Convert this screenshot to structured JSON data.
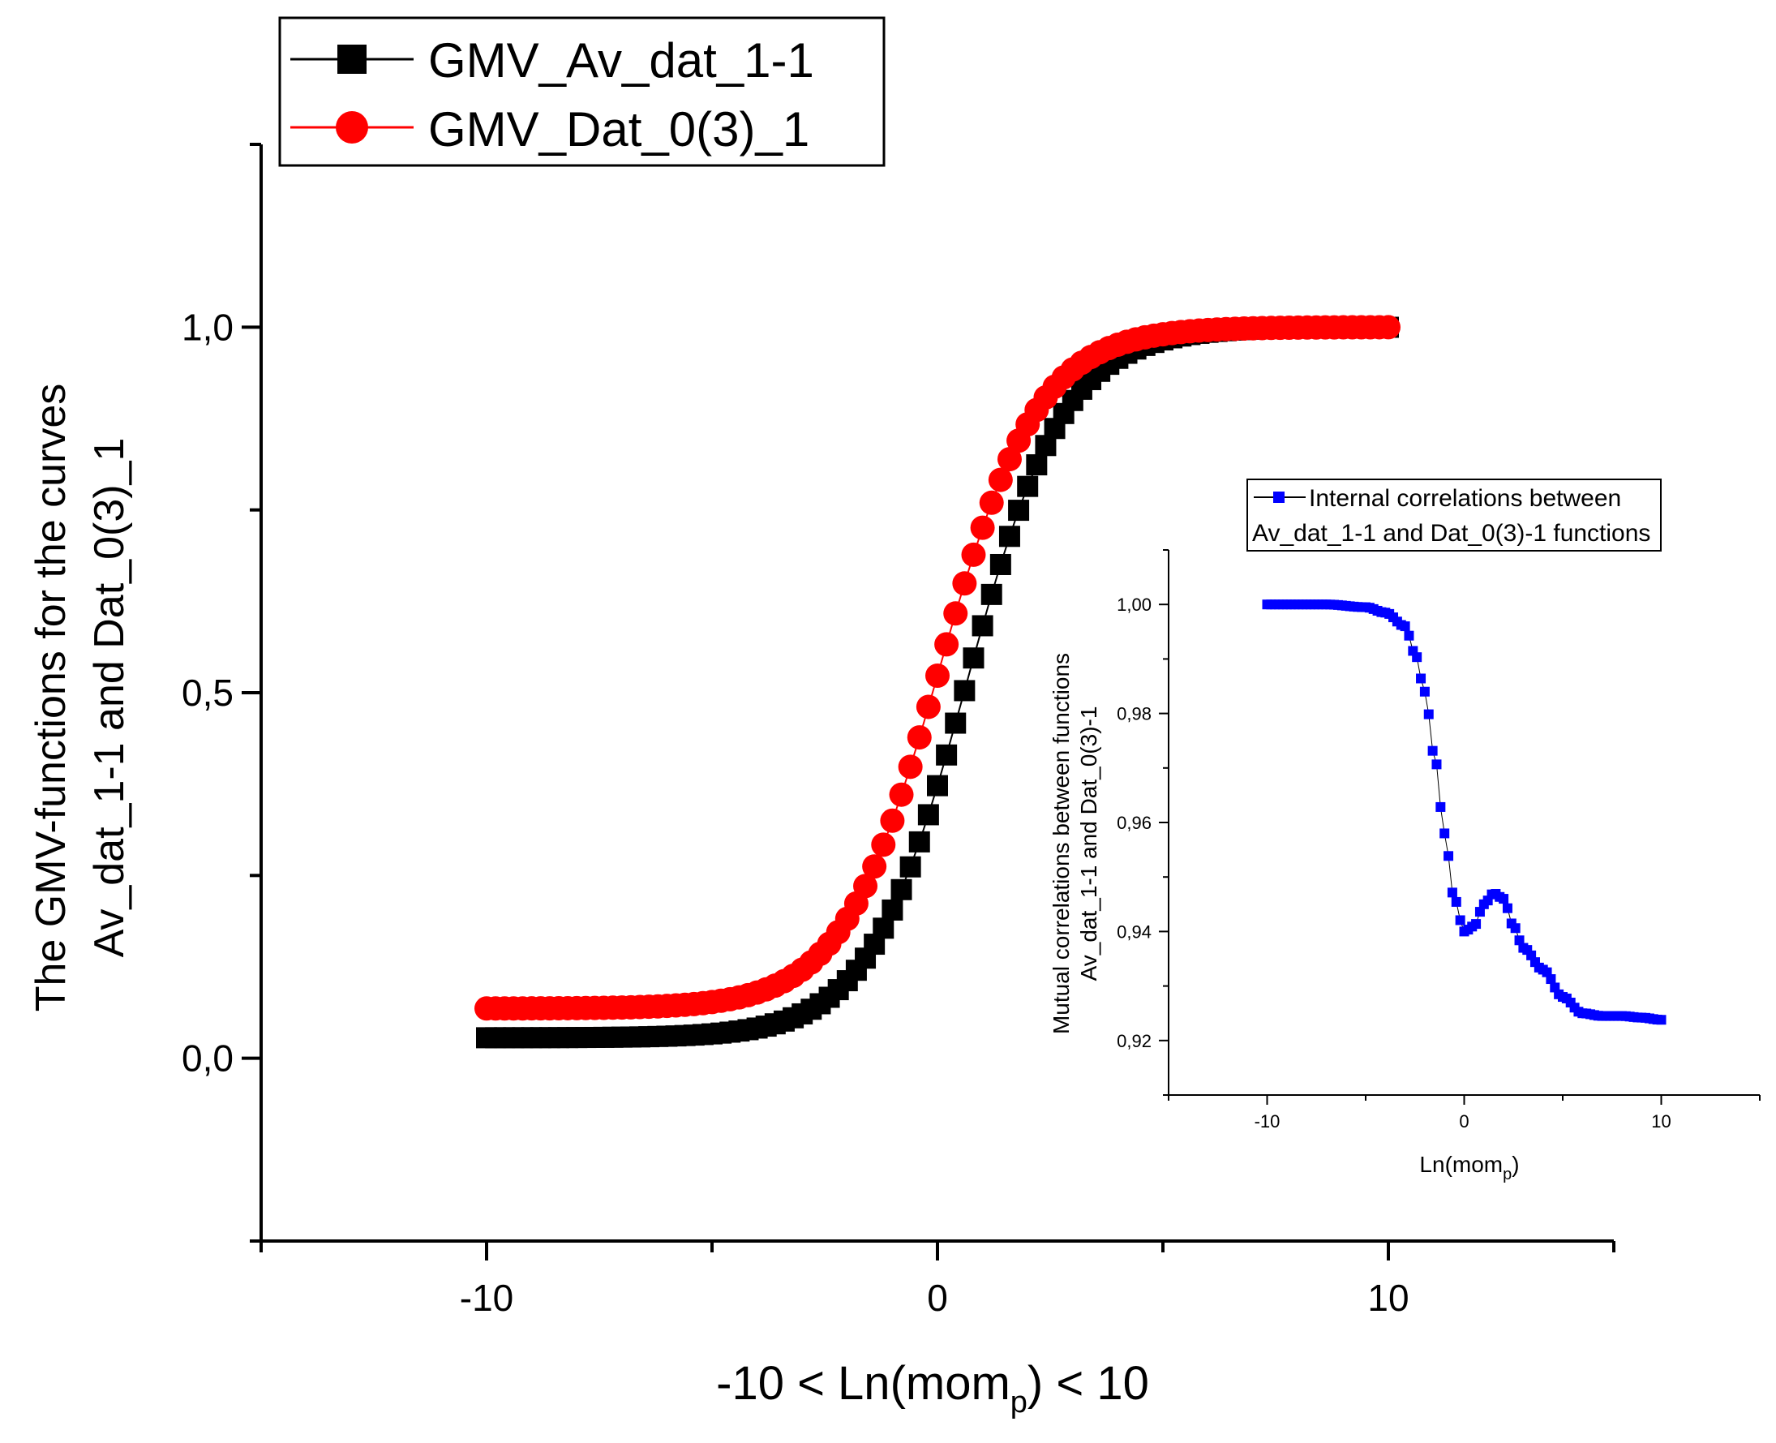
{
  "chart_data": [
    {
      "type": "scatter",
      "xlabel": {
        "prefix": "-10 < Ln(mom",
        "sub": "p",
        "suffix": ") < 10"
      },
      "ylabel": [
        "The GMV-functions for the curves",
        "Av_dat_1-1 and Dat_0(3)_1"
      ],
      "xlim": [
        -15,
        15
      ],
      "ylim": [
        -0.25,
        1.25
      ],
      "xticks": [
        -10,
        0,
        10
      ],
      "xtick_labels": [
        "-10",
        "0",
        "10"
      ],
      "yticks": [
        0.0,
        0.5,
        1.0
      ],
      "ytick_labels": [
        "0,0",
        "0,5",
        "1,0"
      ],
      "legend_position": "top-left",
      "series": [
        {
          "name": "GMV_Av_dat_1-1",
          "color": "#000000",
          "marker": "square",
          "x_range": [
            -10,
            10
          ],
          "n_points": 101,
          "logistic": {
            "floor": 0.028,
            "ceiling": 1.0,
            "center": 0.65,
            "slope": 0.92
          }
        },
        {
          "name": "GMV_Dat_0(3)_1",
          "color": "#ff0000",
          "marker": "circle",
          "x_range": [
            -10,
            10
          ],
          "n_points": 101,
          "logistic": {
            "floor": 0.068,
            "ceiling": 1.0,
            "center": 0.05,
            "slope": 0.92
          }
        }
      ]
    },
    {
      "type": "scatter",
      "xlabel": {
        "prefix": "Ln(mom",
        "sub": "p",
        "suffix": ")"
      },
      "ylabel": [
        "Mutual correlations between functions",
        "Av_dat_1-1 and Dat_0(3)-1"
      ],
      "xlim": [
        -15,
        15
      ],
      "ylim": [
        0.91,
        1.01
      ],
      "xticks": [
        -10,
        0,
        10
      ],
      "xtick_labels": [
        "-10",
        "0",
        "10"
      ],
      "yticks": [
        0.92,
        0.94,
        0.96,
        0.98,
        1.0
      ],
      "ytick_labels": [
        "0,92",
        "0,94",
        "0,96",
        "0,98",
        "1,00"
      ],
      "legend_position": "top",
      "series": [
        {
          "name": "Internal correlations between Av_dat_1-1 and Dat_0(3)-1 functions",
          "name_lines": [
            "Internal correlations between",
            "Av_dat_1-1 and Dat_0(3)-1 functions"
          ],
          "color": "#0000ff",
          "marker": "square",
          "x_range": [
            -10,
            10
          ],
          "n_points": 101,
          "knots": [
            [
              -10,
              1.0
            ],
            [
              -7,
              1.0
            ],
            [
              -5,
              0.9995
            ],
            [
              -4,
              0.9985
            ],
            [
              -3,
              0.996
            ],
            [
              -2.5,
              0.991
            ],
            [
              -2,
              0.984
            ],
            [
              -1.5,
              0.972
            ],
            [
              -1,
              0.958
            ],
            [
              -0.5,
              0.946
            ],
            [
              0,
              0.94
            ],
            [
              0.5,
              0.941
            ],
            [
              1,
              0.945
            ],
            [
              1.5,
              0.947
            ],
            [
              2,
              0.946
            ],
            [
              2.5,
              0.941
            ],
            [
              3,
              0.937
            ],
            [
              4,
              0.933
            ],
            [
              5,
              0.928
            ],
            [
              6,
              0.925
            ],
            [
              7,
              0.9245
            ],
            [
              8,
              0.9245
            ],
            [
              9,
              0.9242
            ],
            [
              10,
              0.9238
            ]
          ]
        }
      ]
    }
  ]
}
